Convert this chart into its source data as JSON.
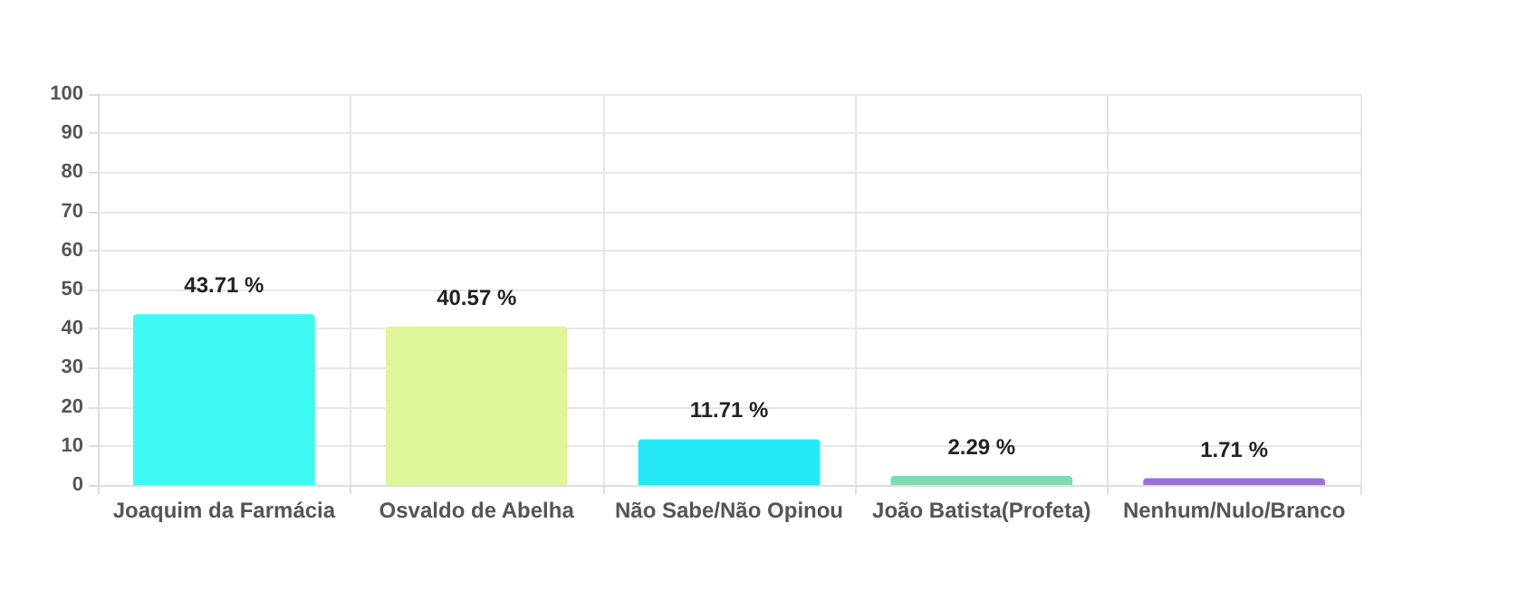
{
  "chart_data": {
    "type": "bar",
    "categories": [
      "Joaquim da Farmácia",
      "Osvaldo de Abelha",
      "Não Sabe/Não Opinou",
      "João Batista(Profeta)",
      "Nenhum/Nulo/Branco"
    ],
    "values": [
      43.71,
      40.57,
      11.71,
      2.29,
      1.71
    ],
    "value_labels": [
      "43.71 %",
      "40.57 %",
      "11.71 %",
      "2.29 %",
      "1.71 %"
    ],
    "colors": [
      "#40f8f2",
      "#dff59a",
      "#25e8f7",
      "#7fdcb0",
      "#9b6fd8"
    ],
    "ylim": [
      0,
      100
    ],
    "yticks": [
      0,
      10,
      20,
      30,
      40,
      50,
      60,
      70,
      80,
      90,
      100
    ],
    "grid": true
  }
}
